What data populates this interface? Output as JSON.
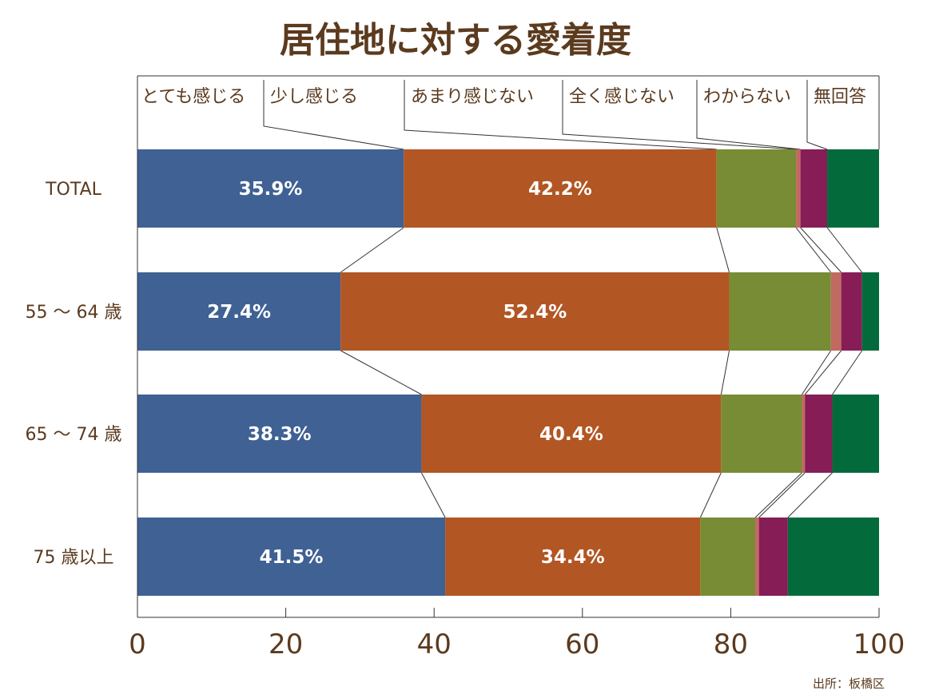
{
  "source_note": "出所：板橋区",
  "chart_data": {
    "type": "bar",
    "orientation": "horizontal",
    "stacked": true,
    "title": "居住地に対する愛着度",
    "categories": [
      "TOTAL",
      "55 ～ 64 歳",
      "65 ～ 74 歳",
      "75 歳以上"
    ],
    "series": [
      {
        "name": "とても感じる",
        "color": "#3f6194",
        "values": [
          35.9,
          27.4,
          38.3,
          41.5
        ]
      },
      {
        "name": "少し感じる",
        "color": "#b25623",
        "values": [
          42.2,
          52.4,
          40.4,
          34.4
        ]
      },
      {
        "name": "あまり感じない",
        "color": "#788c35",
        "values": [
          10.7,
          13.7,
          10.9,
          7.4
        ]
      },
      {
        "name": "全く感じない",
        "color": "#c06a62",
        "values": [
          0.6,
          1.4,
          0.4,
          0.5
        ]
      },
      {
        "name": "わからない",
        "color": "#861d56",
        "values": [
          3.6,
          2.8,
          3.7,
          3.9
        ]
      },
      {
        "name": "無回答",
        "color": "#036b3b",
        "values": [
          7.0,
          2.3,
          6.3,
          12.3
        ]
      }
    ],
    "data_labels": [
      [
        "35.9%",
        "42.2%"
      ],
      [
        "27.4%",
        "52.4%"
      ],
      [
        "38.3%",
        "40.4%"
      ],
      [
        "41.5%",
        "34.4%"
      ]
    ],
    "xlim": [
      0,
      100
    ],
    "xticks": [
      0,
      20,
      40,
      60,
      80,
      100
    ],
    "legend_position": "top",
    "connector_lines": true,
    "label_color": "#5b3a1e",
    "data_label_color": "#ffffff"
  }
}
